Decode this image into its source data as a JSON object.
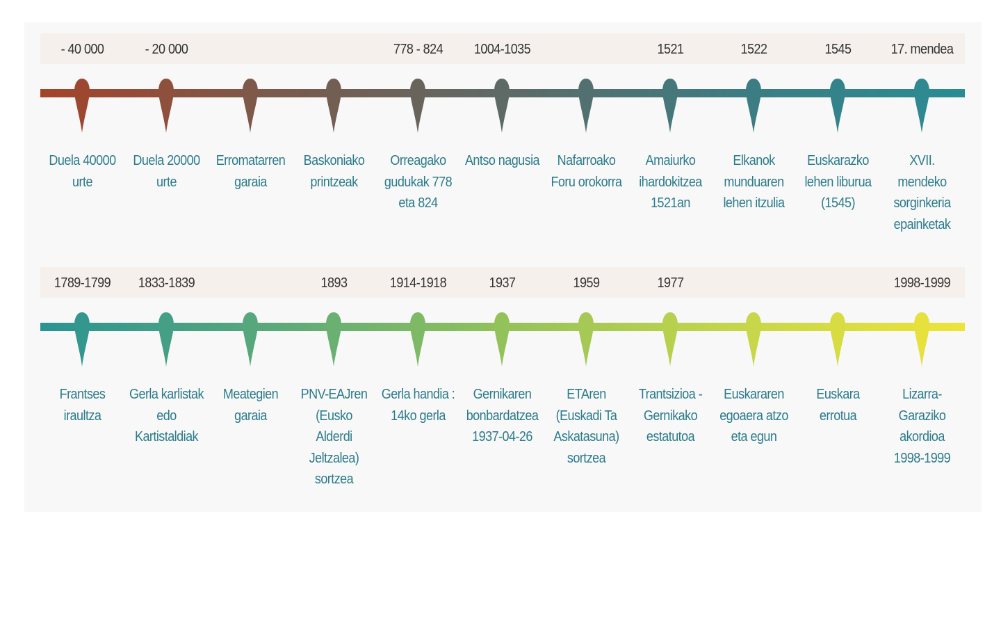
{
  "rows": [
    {
      "gradient": [
        "#a5432a",
        "#7a5a4c",
        "#5e6a66",
        "#3d7c82",
        "#2a8c93"
      ],
      "events": [
        {
          "date": "- 40 000",
          "label": [
            "Duela 40000",
            "urte"
          ]
        },
        {
          "date": "- 20 000",
          "label": [
            "Duela 20000",
            "urte"
          ]
        },
        {
          "date": "",
          "label": [
            "Erromatarren",
            "garaia"
          ]
        },
        {
          "date": "",
          "label": [
            "Baskoniako",
            "printzeak"
          ]
        },
        {
          "date": "778 - 824",
          "label": [
            "Orreagako",
            "gudukak 778",
            "eta 824"
          ]
        },
        {
          "date": "1004-1035",
          "label": [
            "Antso nagusia"
          ]
        },
        {
          "date": "",
          "label": [
            "Nafarroako",
            "Foru orokorra"
          ]
        },
        {
          "date": "1521",
          "label": [
            "Amaiurko",
            "ihardokitzea",
            "1521an"
          ]
        },
        {
          "date": "1522",
          "label": [
            "Elkanok",
            "munduaren",
            "lehen itzulia"
          ]
        },
        {
          "date": "1545",
          "label": [
            "Euskarazko",
            "lehen liburua",
            "(1545)"
          ]
        },
        {
          "date": "17. mendea",
          "label": [
            "XVII.",
            "mendeko",
            "sorginkeria",
            "epainketak"
          ]
        }
      ]
    },
    {
      "gradient": [
        "#2a9393",
        "#5aa97a",
        "#93c25a",
        "#c5d64a",
        "#ede43a"
      ],
      "events": [
        {
          "date": "1789-1799",
          "label": [
            "Frantses",
            "iraultza"
          ]
        },
        {
          "date": "1833-1839",
          "label": [
            "Gerla karlistak",
            "edo",
            "Kartistaldiak"
          ]
        },
        {
          "date": "",
          "label": [
            "Meategien",
            "garaia"
          ]
        },
        {
          "date": "1893",
          "label": [
            "PNV-EAJren",
            "(Eusko",
            "Alderdi",
            "Jeltzalea)",
            "sortzea"
          ]
        },
        {
          "date": "1914-1918",
          "label": [
            "Gerla handia :",
            "14ko gerla"
          ]
        },
        {
          "date": "1937",
          "label": [
            "Gernikaren",
            "bonbardatzea",
            "1937-04-26"
          ]
        },
        {
          "date": "1959",
          "label": [
            "ETAren",
            "(Euskadi Ta",
            "Askatasuna)",
            "sortzea"
          ]
        },
        {
          "date": "1977",
          "label": [
            "Trantsizioa -",
            "Gernikako",
            "estatutoa"
          ]
        },
        {
          "date": "",
          "label": [
            "Euskararen",
            "egoaera atzo",
            "eta egun"
          ]
        },
        {
          "date": "",
          "label": [
            "Euskara",
            "errotua"
          ]
        },
        {
          "date": "1998-1999",
          "label": [
            "Lizarra-",
            "Garaziko",
            "akordioa",
            "1998-1999"
          ]
        }
      ]
    }
  ]
}
